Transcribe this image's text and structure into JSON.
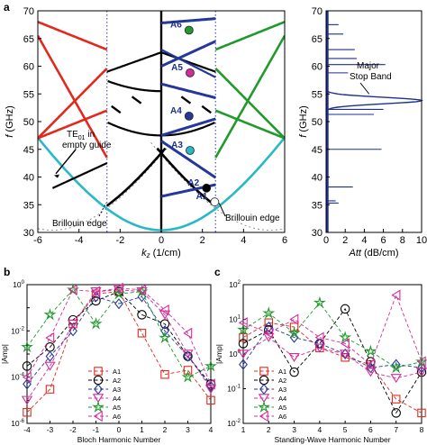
{
  "panel_labels": {
    "a": "a",
    "b": "b",
    "c": "c"
  },
  "colors": {
    "red": "#e2291d",
    "black": "#000000",
    "blue": "#24379b",
    "green": "#1f9a2b",
    "cyan": "#27b9c7",
    "magenta": "#d62b9a",
    "dotted": "#5555c8",
    "stem": "#1e2f8f"
  },
  "chart_data": [
    {
      "id": "dispersion",
      "type": "line",
      "xlabel": "k_z (1/cm)",
      "ylabel": "f (GHz)",
      "xlim": [
        -6,
        6
      ],
      "ylim": [
        30,
        70
      ],
      "xticks": [
        -6,
        -4,
        -2,
        0,
        2,
        4,
        6
      ],
      "yticks": [
        30,
        35,
        40,
        45,
        50,
        55,
        60,
        65,
        70
      ],
      "brillouin_edges": [
        -2.64,
        2.64
      ],
      "series": [
        {
          "name": "TE01 in empty guide",
          "color": "cyan"
        },
        {
          "color": "black"
        },
        {
          "color": "blue"
        },
        {
          "color": "red"
        },
        {
          "color": "green"
        }
      ],
      "points": [
        {
          "name": "A1",
          "x": 2.6,
          "y": 35.5,
          "fill": "#ffffff"
        },
        {
          "name": "A2",
          "x": 2.2,
          "y": 38.0,
          "fill": "#000000"
        },
        {
          "name": "A3",
          "x": 1.4,
          "y": 44.8,
          "fill": "#27b9c7"
        },
        {
          "name": "A4",
          "x": 1.35,
          "y": 51.0,
          "fill": "#24379b"
        },
        {
          "name": "A5",
          "x": 1.4,
          "y": 58.8,
          "fill": "#d62b9a"
        },
        {
          "name": "A6",
          "x": 1.35,
          "y": 66.5,
          "fill": "#1f9a2b"
        }
      ],
      "annotations": {
        "te_line1": "TE",
        "te_sub": "01",
        "te_line1b": " in",
        "te_line2": "empty guide",
        "brillouin_left": "Brillouin edge",
        "brillouin_right": "Brillouin edge"
      }
    },
    {
      "id": "attenuation",
      "type": "line",
      "xlabel": "Att (dB/cm)",
      "xlim": [
        0,
        10
      ],
      "ylim": [
        30,
        70
      ],
      "xticks": [
        0,
        2,
        4,
        6,
        8,
        10
      ],
      "yticks": [
        30,
        35,
        40,
        45,
        50,
        55,
        60,
        65,
        70
      ],
      "annotation_line1": "Major",
      "annotation_line2": "Stop Band",
      "spikes": [
        {
          "f": 35.3,
          "att": 1.3
        },
        {
          "f": 35.7,
          "att": 1.0
        },
        {
          "f": 38.2,
          "att": 2.8
        },
        {
          "f": 45.0,
          "att": 5.8
        },
        {
          "f": 51.3,
          "att": 5.0
        },
        {
          "f": 52.2,
          "att": 6.0
        },
        {
          "f": 58.8,
          "att": 2.3
        },
        {
          "f": 60.3,
          "att": 6.2
        },
        {
          "f": 61.4,
          "att": 3.2
        },
        {
          "f": 63.0,
          "att": 3.0
        },
        {
          "f": 65.8,
          "att": 1.8
        },
        {
          "f": 67.5,
          "att": 1.3
        }
      ],
      "band": {
        "center": 53.8,
        "peak": 10.0,
        "width": 1.5
      }
    },
    {
      "id": "bloch",
      "type": "line",
      "xlabel": "Bloch Harmonic Number",
      "ylabel": "|Amp|",
      "log_y": true,
      "xlim": [
        -4,
        4
      ],
      "ylim": [
        1e-06,
        1
      ],
      "xticks": [
        -4,
        -3,
        -2,
        -1,
        0,
        1,
        2,
        3,
        4
      ],
      "yticks": [
        -6,
        -4,
        -2,
        0
      ],
      "x": [
        -4,
        -3,
        -2,
        -1,
        0,
        1,
        2,
        3,
        4
      ],
      "series": [
        {
          "name": "A1",
          "color": "red",
          "marker": "square",
          "values": [
            3e-06,
            3e-05,
            0.02,
            0.4,
            0.5,
            0.008,
            0.00013,
            0.0002,
            1e-05
          ]
        },
        {
          "name": "A2",
          "color": "black",
          "marker": "circle",
          "values": [
            0.0003,
            0.002,
            0.03,
            0.2,
            0.5,
            0.05,
            0.02,
            0.0008,
            5e-05
          ]
        },
        {
          "name": "A3",
          "color": "blue",
          "marker": "diamond",
          "values": [
            5e-05,
            0.0008,
            0.01,
            0.3,
            0.15,
            0.3,
            0.01,
            0.0008,
            4e-05
          ]
        },
        {
          "name": "A4",
          "color": "magenta",
          "marker": "triangle-down",
          "values": [
            1e-05,
            0.0003,
            0.02,
            0.5,
            0.6,
            0.5,
            0.05,
            0.001,
            3e-05
          ]
        },
        {
          "name": "A5",
          "color": "green",
          "marker": "star",
          "values": [
            0.002,
            0.05,
            0.6,
            0.02,
            0.4,
            0.5,
            0.005,
            0.0001,
            0.0003
          ]
        },
        {
          "name": "A6",
          "color": "magenta",
          "marker": "triangle-left",
          "values": [
            0.0001,
            0.005,
            0.6,
            0.5,
            0.7,
            0.6,
            0.08,
            0.008,
            5e-05
          ]
        }
      ]
    },
    {
      "id": "standing",
      "type": "line",
      "xlabel": "Standing-Wave Harmonic Number",
      "ylabel": "|Amp|",
      "log_y": true,
      "xlim": [
        1,
        8
      ],
      "ylim": [
        0.01,
        100
      ],
      "xticks": [
        1,
        2,
        3,
        4,
        5,
        6,
        7,
        8
      ],
      "yticks": [
        -2,
        -1,
        0,
        1,
        2
      ],
      "x": [
        1,
        2,
        3,
        4,
        5,
        6,
        7,
        8
      ],
      "series": [
        {
          "name": "A1",
          "color": "red",
          "marker": "square",
          "values": [
            3,
            8,
            6,
            1.5,
            0.8,
            0.5,
            0.05,
            0.02
          ]
        },
        {
          "name": "A2",
          "color": "black",
          "marker": "circle",
          "values": [
            2,
            5,
            0.3,
            2,
            20,
            0.6,
            0.02,
            0.3
          ]
        },
        {
          "name": "A3",
          "color": "blue",
          "marker": "diamond",
          "values": [
            0.5,
            6,
            3,
            2,
            1,
            0.4,
            0.5,
            0.4
          ]
        },
        {
          "name": "A4",
          "color": "magenta",
          "marker": "triangle-down",
          "values": [
            1,
            3,
            0.8,
            1.5,
            1,
            0.3,
            0.2,
            0.3
          ]
        },
        {
          "name": "A5",
          "color": "green",
          "marker": "star",
          "values": [
            5,
            15,
            4,
            30,
            3,
            1.2,
            0.4,
            0.6
          ]
        },
        {
          "name": "A6",
          "color": "magenta",
          "marker": "triangle-left",
          "values": [
            8,
            4,
            10,
            3,
            2,
            0.5,
            50,
            0.6
          ]
        }
      ]
    }
  ]
}
